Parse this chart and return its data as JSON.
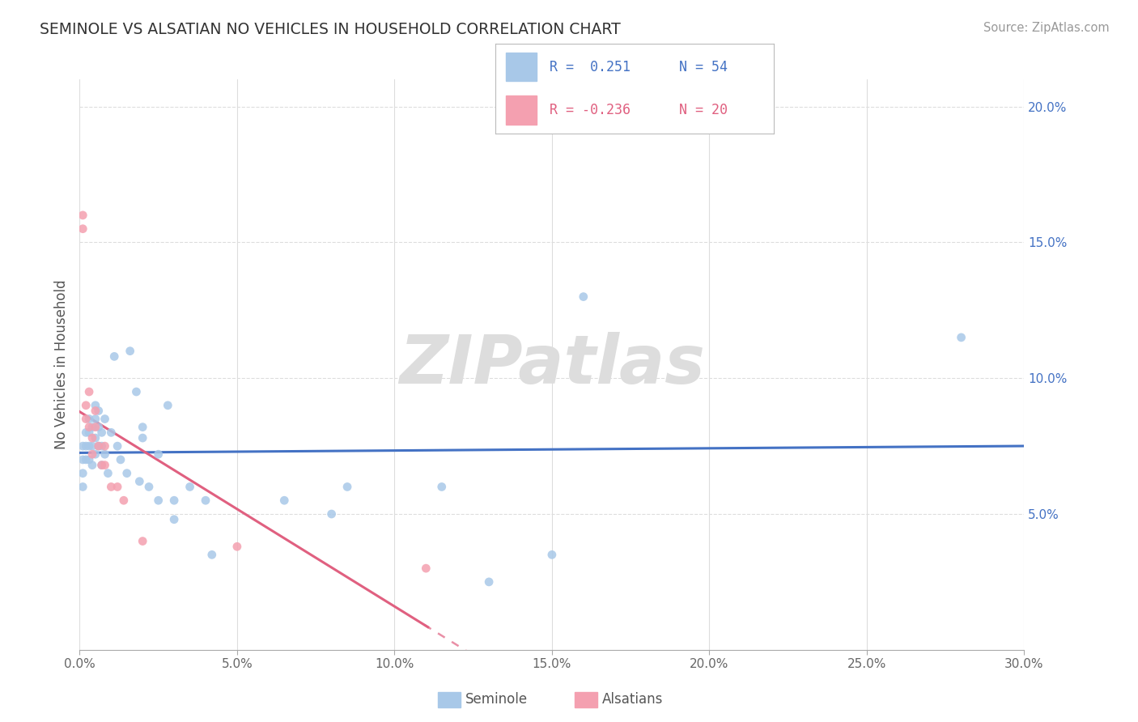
{
  "title": "SEMINOLE VS ALSATIAN NO VEHICLES IN HOUSEHOLD CORRELATION CHART",
  "source_text": "Source: ZipAtlas.com",
  "ylabel": "No Vehicles in Household",
  "xlim": [
    0.0,
    0.3
  ],
  "ylim": [
    0.0,
    0.21
  ],
  "x_ticks": [
    0.0,
    0.05,
    0.1,
    0.15,
    0.2,
    0.25,
    0.3
  ],
  "x_tick_labels": [
    "0.0%",
    "5.0%",
    "10.0%",
    "15.0%",
    "20.0%",
    "25.0%",
    "30.0%"
  ],
  "y_ticks": [
    0.05,
    0.1,
    0.15,
    0.2
  ],
  "y_tick_labels": [
    "5.0%",
    "10.0%",
    "15.0%",
    "20.0%"
  ],
  "seminole_color": "#a8c8e8",
  "alsatian_color": "#f4a0b0",
  "seminole_line_color": "#4472c4",
  "alsatian_line_color": "#e06080",
  "background_color": "#ffffff",
  "grid_color": "#dddddd",
  "seminole_x": [
    0.001,
    0.001,
    0.001,
    0.001,
    0.002,
    0.002,
    0.002,
    0.003,
    0.003,
    0.003,
    0.003,
    0.004,
    0.004,
    0.004,
    0.005,
    0.005,
    0.005,
    0.005,
    0.006,
    0.006,
    0.006,
    0.007,
    0.007,
    0.007,
    0.008,
    0.008,
    0.009,
    0.01,
    0.011,
    0.012,
    0.013,
    0.015,
    0.016,
    0.018,
    0.019,
    0.02,
    0.02,
    0.022,
    0.025,
    0.025,
    0.028,
    0.03,
    0.03,
    0.035,
    0.04,
    0.042,
    0.065,
    0.08,
    0.085,
    0.115,
    0.13,
    0.15,
    0.16,
    0.28
  ],
  "seminole_y": [
    0.075,
    0.07,
    0.065,
    0.06,
    0.08,
    0.075,
    0.07,
    0.085,
    0.08,
    0.075,
    0.07,
    0.082,
    0.075,
    0.068,
    0.09,
    0.085,
    0.078,
    0.072,
    0.088,
    0.082,
    0.075,
    0.08,
    0.075,
    0.068,
    0.085,
    0.072,
    0.065,
    0.08,
    0.108,
    0.075,
    0.07,
    0.065,
    0.11,
    0.095,
    0.062,
    0.082,
    0.078,
    0.06,
    0.072,
    0.055,
    0.09,
    0.055,
    0.048,
    0.06,
    0.055,
    0.035,
    0.055,
    0.05,
    0.06,
    0.06,
    0.025,
    0.035,
    0.13,
    0.115
  ],
  "alsatian_x": [
    0.001,
    0.001,
    0.002,
    0.002,
    0.003,
    0.003,
    0.004,
    0.004,
    0.005,
    0.005,
    0.006,
    0.007,
    0.008,
    0.008,
    0.01,
    0.012,
    0.014,
    0.02,
    0.05,
    0.11
  ],
  "alsatian_y": [
    0.16,
    0.155,
    0.09,
    0.085,
    0.095,
    0.082,
    0.078,
    0.072,
    0.088,
    0.082,
    0.075,
    0.068,
    0.075,
    0.068,
    0.06,
    0.06,
    0.055,
    0.04,
    0.038,
    0.03
  ],
  "marker_size_seminole": 60,
  "marker_size_alsatian": 60,
  "watermark": "ZIPatlas",
  "seminole_legend_r": "R =  0.251",
  "seminole_legend_n": "N = 54",
  "alsatian_legend_r": "R = -0.236",
  "alsatian_legend_n": "N = 20",
  "bottom_legend_seminole": "Seminole",
  "bottom_legend_alsatian": "Alsatians"
}
